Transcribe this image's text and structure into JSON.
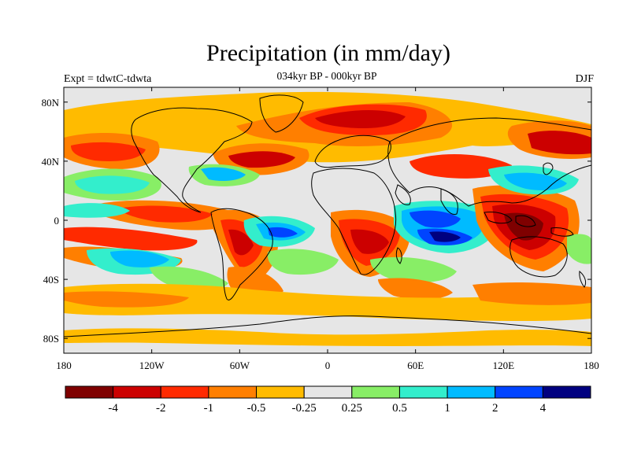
{
  "title": "Precipitation (in mm/day)",
  "experiment_label": "Expt = tdwtC-tdwta",
  "period_label": "034kyr BP - 000kyr BP",
  "season_label": "DJF",
  "lon_ticks": [
    "180",
    "120W",
    "60W",
    "0",
    "60E",
    "120E",
    "180"
  ],
  "lat_ticks": [
    "80N",
    "40N",
    "0",
    "40S",
    "80S"
  ],
  "colorbar": {
    "colors": [
      "#7f0000",
      "#cc0000",
      "#ff2a00",
      "#ff7f00",
      "#ffbb00",
      "#e6e6e6",
      "#88ee66",
      "#33eecc",
      "#00bbff",
      "#0044ff",
      "#000080"
    ],
    "labels": [
      "-4",
      "-2",
      "-1",
      "-0.5",
      "-0.25",
      "0.25",
      "0.5",
      "1",
      "2",
      "4"
    ]
  },
  "map": {
    "background_color": "#e6e6e6",
    "coastline_color": "#000000"
  }
}
